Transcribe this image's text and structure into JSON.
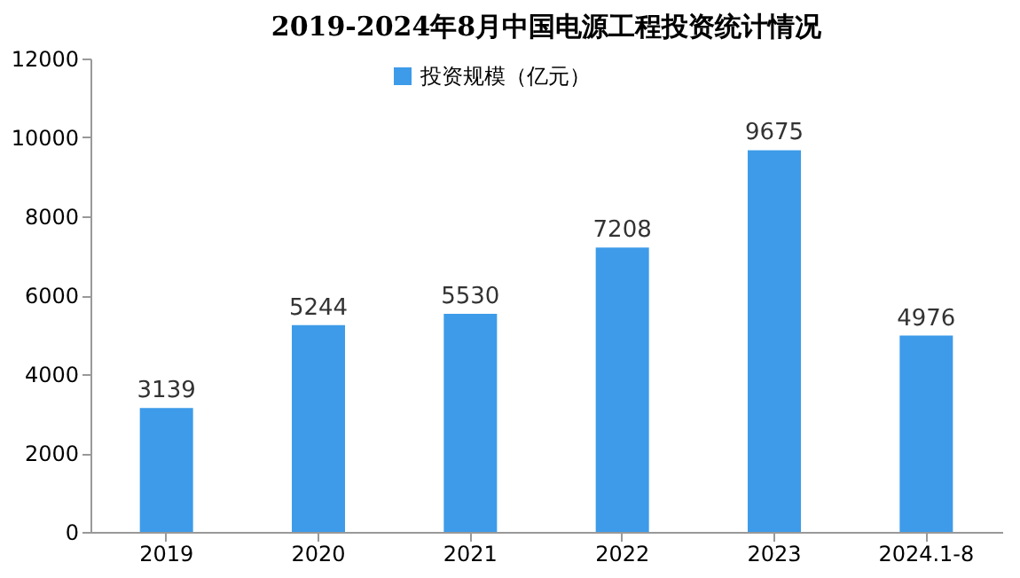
{
  "chart_data": {
    "type": "bar",
    "title": "2019-2024年8月中国电源工程投资统计情况",
    "categories": [
      "2019",
      "2020",
      "2021",
      "2022",
      "2023",
      "2024.1-8"
    ],
    "series": [
      {
        "name": "投资规模（亿元）",
        "color": "#3d9be9",
        "values": [
          3139,
          5244,
          5530,
          7208,
          9675,
          4976
        ]
      }
    ],
    "ylim": [
      0,
      12000
    ],
    "yticks": [
      0,
      2000,
      4000,
      6000,
      8000,
      10000,
      12000
    ],
    "data_labels": true,
    "legend": "top",
    "grid": false
  }
}
